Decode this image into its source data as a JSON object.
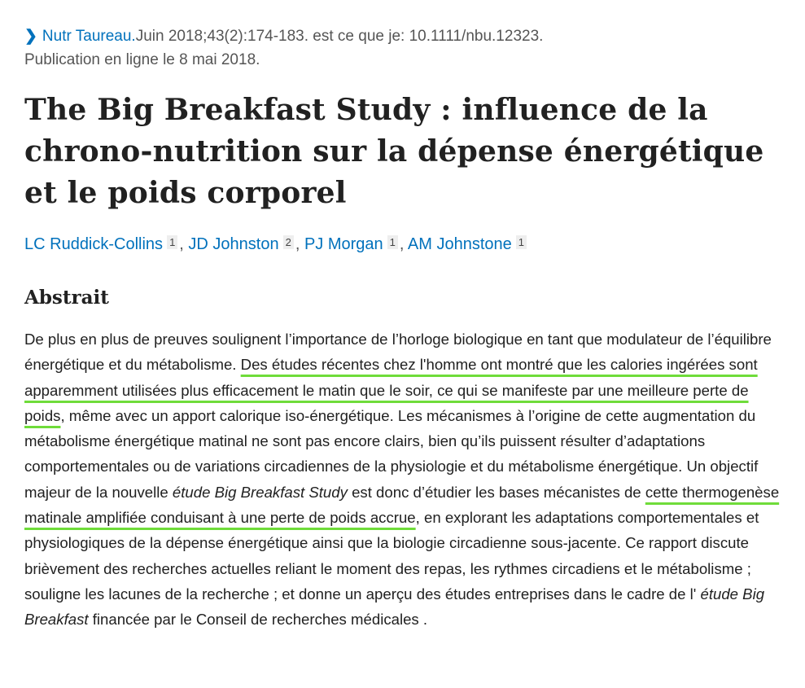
{
  "citation": {
    "journal": "Nutr Taureau.",
    "details": "Juin 2018;43(2):174-183. est ce que je: 10.1111/nbu.12323.",
    "published": "Publication en ligne le 8 mai 2018."
  },
  "title": "The Big Breakfast Study : influence de la chrono-nutrition sur la dépense énergétique et le poids corporel",
  "authors": [
    {
      "name": "LC Ruddick-Collins",
      "aff": "1"
    },
    {
      "name": "JD Johnston",
      "aff": "2"
    },
    {
      "name": "PJ Morgan",
      "aff": "1"
    },
    {
      "name": "AM Johnstone",
      "aff": "1"
    }
  ],
  "abstract": {
    "heading": "Abstrait",
    "highlight_color": "#6fdc3a",
    "segments": [
      {
        "text": "De plus en plus de preuves soulignent l’importance de l’horloge biologique en tant que modulateur de l’équilibre énergétique et du métabolisme. "
      },
      {
        "text": "Des études récentes chez l'homme ont montré que les calories ingérées sont apparemment utilisées plus efficacement le matin que le soir, ce qui se manifeste par une meilleure perte de poids",
        "underline": true
      },
      {
        "text": ", même avec un apport calorique iso-énergétique. Les mécanismes à l’origine de cette augmentation du métabolisme énergétique matinal ne sont pas encore clairs, bien qu’ils puissent résulter d’adaptations comportementales ou de variations circadiennes de la physiologie et du métabolisme énergétique. Un objectif majeur de la nouvelle "
      },
      {
        "text": "étude Big Breakfast Study",
        "italic": true
      },
      {
        "text": " est donc d’étudier les bases mécanistes de "
      },
      {
        "text": "cette thermogenèse matinale amplifiée conduisant à une perte de poids accrue",
        "underline": true
      },
      {
        "text": ", en explorant les adaptations comportementales et physiologiques de la dépense énergétique ainsi que la biologie circadienne sous-jacente. Ce rapport discute brièvement des recherches actuelles reliant le moment des repas, les rythmes circadiens et le métabolisme ; souligne les lacunes de la recherche ; et donne un aperçu des études entreprises dans le cadre de l' "
      },
      {
        "text": "étude Big Breakfast",
        "italic": true
      },
      {
        "text": " financée par le Conseil de recherches médicales ."
      }
    ]
  }
}
